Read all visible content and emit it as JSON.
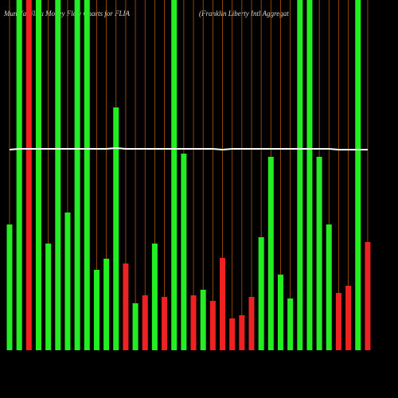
{
  "chart_data": {
    "type": "bar",
    "title": "Munafa Ultra Money Flow Charts for FLIA",
    "subtitle": "(Franklin Liberty Intl Aggregat",
    "categories": [
      null,
      null,
      null,
      null,
      null,
      null,
      null,
      null,
      null,
      null,
      null,
      null,
      null,
      null,
      null,
      null,
      null,
      null,
      null,
      null,
      null,
      null,
      null,
      null,
      null,
      null,
      null,
      null,
      null,
      null,
      null,
      null,
      null,
      null,
      null,
      null,
      null,
      null
    ],
    "ylim": [
      0,
      440
    ],
    "grid_color": "#b35900",
    "series": [
      {
        "name": "Money Flow",
        "values": [
          158,
          440,
          440,
          440,
          134,
          440,
          173,
          440,
          440,
          101,
          115,
          305,
          109,
          59,
          69,
          134,
          67,
          440,
          247,
          69,
          76,
          62,
          116,
          40,
          44,
          67,
          142,
          243,
          95,
          65,
          440,
          440,
          243,
          158,
          72,
          81,
          440,
          136
        ],
        "colors": [
          "#22ee22",
          "#22ee22",
          "#ee2222",
          "#22ee22",
          "#22ee22",
          "#22ee22",
          "#22ee22",
          "#22ee22",
          "#22ee22",
          "#22ee22",
          "#22ee22",
          "#22ee22",
          "#ee2222",
          "#22ee22",
          "#ee2222",
          "#22ee22",
          "#ee2222",
          "#22ee22",
          "#22ee22",
          "#ee2222",
          "#22ee22",
          "#ee2222",
          "#ee2222",
          "#ee2222",
          "#ee2222",
          "#ee2222",
          "#22ee22",
          "#22ee22",
          "#22ee22",
          "#22ee22",
          "#22ee22",
          "#22ee22",
          "#22ee22",
          "#22ee22",
          "#ee2222",
          "#ee2222",
          "#22ee22",
          "#ee2222"
        ]
      },
      {
        "name": "Price",
        "type": "line",
        "color": "#ffffff",
        "values": [
          252,
          253,
          253,
          253,
          253,
          253,
          253,
          253,
          253,
          253,
          253,
          254,
          253,
          253,
          253,
          253,
          253,
          253,
          253,
          253,
          253,
          253,
          252,
          253,
          253,
          253,
          253,
          253,
          253,
          253,
          253,
          253,
          253,
          253,
          252,
          252,
          252,
          252
        ]
      }
    ]
  }
}
